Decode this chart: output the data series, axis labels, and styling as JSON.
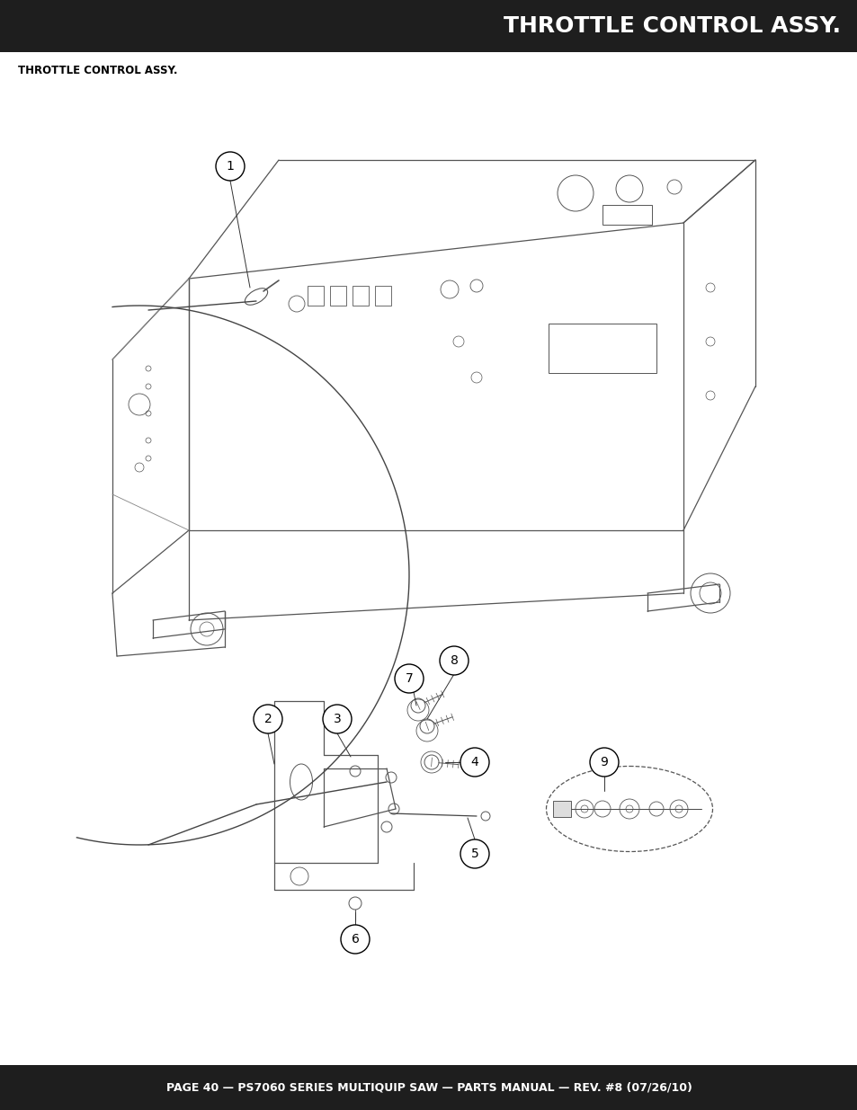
{
  "title_bar_text": "THROTTLE CONTROL ASSY.",
  "subtitle_text": "THROTTLE CONTROL ASSY.",
  "footer_text": "PAGE 40 — PS7060 SERIES MULTIQUIP SAW — PARTS MANUAL — REV. #8 (07/26/10)",
  "title_bar_color": "#1e1e1e",
  "footer_bar_color": "#1e1e1e",
  "title_text_color": "#ffffff",
  "footer_text_color": "#ffffff",
  "subtitle_text_color": "#000000",
  "bg_color": "#ffffff",
  "line_color": "#555555",
  "page_width": 9.54,
  "page_height": 12.35,
  "dpi": 100
}
